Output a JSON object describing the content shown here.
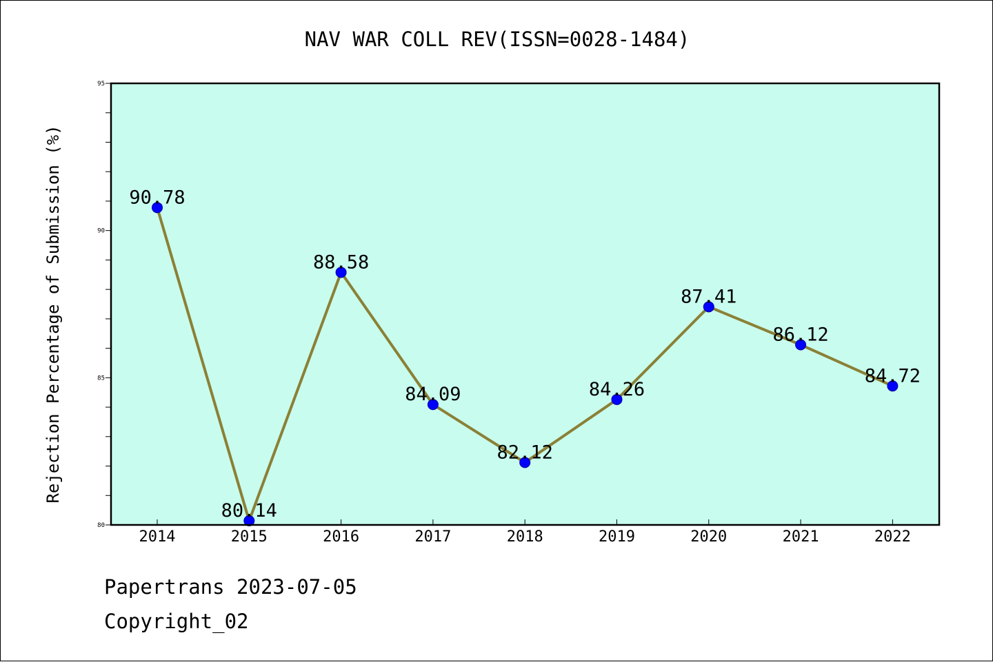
{
  "chart_data": {
    "type": "line",
    "title": "NAV WAR COLL REV(ISSN=0028-1484)",
    "xlabel": "",
    "ylabel": "Rejection Percentage of Submission (%)",
    "categories": [
      "2014",
      "2015",
      "2016",
      "2017",
      "2018",
      "2019",
      "2020",
      "2021",
      "2022"
    ],
    "series": [
      {
        "values": [
          90.78,
          80.14,
          88.58,
          84.09,
          82.12,
          84.26,
          87.41,
          86.12,
          84.72
        ],
        "data_labels": [
          "90.78",
          "80.14",
          "88.58",
          "84.09",
          "82.12",
          "84.26",
          "87.41",
          "86.12",
          "84.72"
        ]
      }
    ],
    "ylim": [
      80,
      95
    ],
    "yticks": [
      80,
      85,
      90,
      95
    ],
    "ytick_labels": [
      "80",
      "85",
      "90",
      "95"
    ],
    "grid": false,
    "colors": {
      "plot_background": "#c8fcee",
      "line": "#8b8036",
      "marker": "#0000ff"
    }
  },
  "footer": {
    "line1": "Papertrans 2023-07-05",
    "line2": "Copyright_02"
  }
}
